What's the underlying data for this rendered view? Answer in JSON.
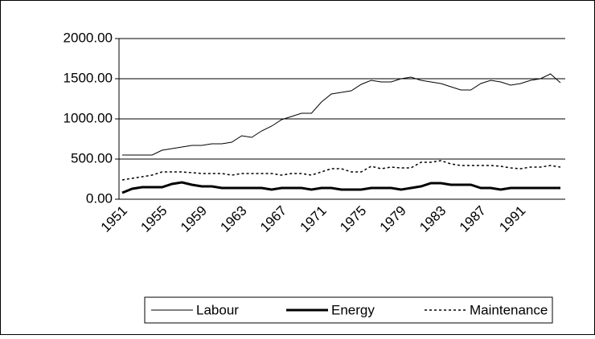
{
  "chart_data": {
    "type": "line",
    "categories": [
      "1951",
      null,
      null,
      null,
      "1955",
      null,
      null,
      null,
      "1959",
      null,
      null,
      null,
      "1963",
      null,
      null,
      null,
      "1967",
      null,
      null,
      null,
      "1971",
      null,
      null,
      null,
      "1975",
      null,
      null,
      null,
      "1979",
      null,
      null,
      null,
      "1983",
      null,
      null,
      null,
      "1987",
      null,
      null,
      null,
      "1991",
      null,
      null,
      null,
      null
    ],
    "series": [
      {
        "name": "Labour",
        "color": "#000000",
        "width": 1,
        "dash": "none",
        "values": [
          550,
          550,
          550,
          550,
          610,
          630,
          650,
          670,
          670,
          690,
          690,
          710,
          790,
          770,
          850,
          910,
          990,
          1030,
          1070,
          1070,
          1210,
          1310,
          1330,
          1350,
          1430,
          1480,
          1460,
          1460,
          1500,
          1520,
          1480,
          1460,
          1440,
          1400,
          1360,
          1360,
          1440,
          1480,
          1460,
          1420,
          1440,
          1480,
          1500,
          1560,
          1450
        ]
      },
      {
        "name": "Energy",
        "color": "#000000",
        "width": 3,
        "dash": "none",
        "values": [
          80,
          130,
          150,
          150,
          150,
          190,
          210,
          180,
          160,
          160,
          140,
          140,
          140,
          140,
          140,
          120,
          140,
          140,
          140,
          120,
          140,
          140,
          120,
          120,
          120,
          140,
          140,
          140,
          120,
          140,
          160,
          200,
          200,
          180,
          180,
          180,
          140,
          140,
          120,
          140,
          140,
          140,
          140,
          140,
          140
        ]
      },
      {
        "name": "Maintenance",
        "color": "#000000",
        "width": 1.5,
        "dash": "3 3",
        "values": [
          240,
          260,
          280,
          300,
          340,
          340,
          340,
          330,
          320,
          320,
          320,
          300,
          320,
          320,
          320,
          320,
          300,
          320,
          320,
          300,
          340,
          380,
          380,
          340,
          340,
          410,
          380,
          400,
          390,
          390,
          460,
          460,
          480,
          440,
          420,
          420,
          420,
          420,
          410,
          390,
          380,
          400,
          400,
          420,
          400
        ]
      }
    ],
    "ylim": [
      0,
      2000
    ],
    "yticks": [
      {
        "value": 0,
        "label": "0.00"
      },
      {
        "value": 500,
        "label": "500.00"
      },
      {
        "value": 1000,
        "label": "1000.00"
      },
      {
        "value": 1500,
        "label": "1500.00"
      },
      {
        "value": 2000,
        "label": "2000.00"
      }
    ],
    "grid": true,
    "legend": "bottom"
  }
}
